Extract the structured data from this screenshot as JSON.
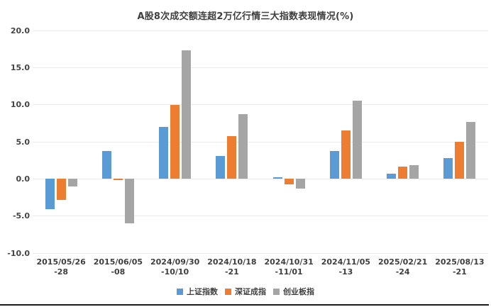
{
  "title": "A股8次成交额连超2万亿行情三大指数表现情况(%)",
  "colors": {
    "series_blue": "#5B9BD5",
    "series_orange": "#ED7D31",
    "series_gray": "#A5A5A5",
    "gridline": "#ebebeb",
    "text": "#3f3f3f",
    "bottom_rule": "#1b1b1b"
  },
  "chart_data": {
    "type": "bar",
    "title": "A股8次成交额连超2万亿行情三大指数表现情况(%)",
    "xlabel": "",
    "ylabel": "",
    "ylim": [
      -10,
      20
    ],
    "grid": true,
    "legend_position": "bottom",
    "y_ticks": [
      20.0,
      15.0,
      10.0,
      5.0,
      0.0,
      -5.0,
      -10.0
    ],
    "categories": [
      {
        "line1": "2015/05/26",
        "line2": "-28"
      },
      {
        "line1": "2015/06/05",
        "line2": "-08"
      },
      {
        "line1": "2024/09/30",
        "line2": "-10/10"
      },
      {
        "line1": "2024/10/18",
        "line2": "-21"
      },
      {
        "line1": "2024/10/31",
        "line2": "-11/01"
      },
      {
        "line1": "2024/11/05",
        "line2": "-13"
      },
      {
        "line1": "2025/02/21",
        "line2": "-24"
      },
      {
        "line1": "2025/08/13",
        "line2": "-21"
      }
    ],
    "series": [
      {
        "name": "上证指数",
        "color": "#5B9BD5",
        "values": [
          -4.1,
          3.8,
          7.0,
          3.1,
          0.2,
          3.8,
          0.7,
          2.8
        ]
      },
      {
        "name": "深证成指",
        "color": "#ED7D31",
        "values": [
          -2.8,
          -0.2,
          10.0,
          5.8,
          -0.7,
          6.5,
          1.7,
          5.0
        ]
      },
      {
        "name": "创业板指",
        "color": "#A5A5A5",
        "values": [
          -1.0,
          -6.0,
          17.3,
          8.7,
          -1.3,
          10.5,
          1.8,
          7.7
        ]
      }
    ]
  }
}
